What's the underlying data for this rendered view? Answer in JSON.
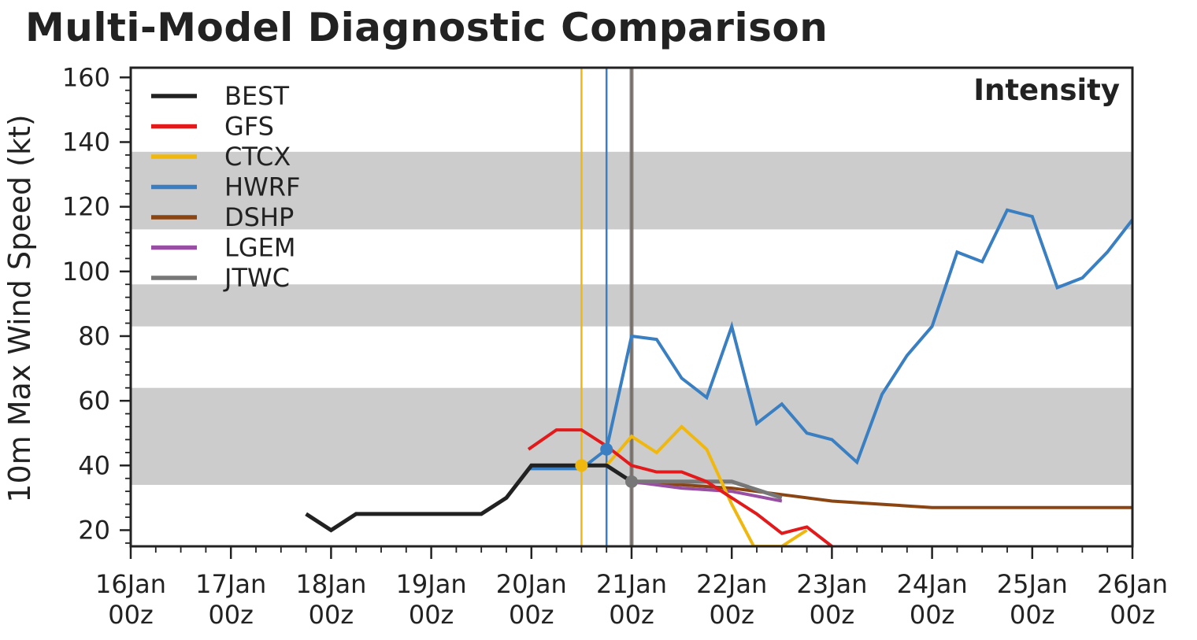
{
  "title": "Multi-Model Diagnostic Comparison",
  "chart_data": {
    "type": "line",
    "panel_label": "Intensity",
    "ylabel": "10m Max Wind Speed (kt)",
    "xlabel": "",
    "ylim": [
      15,
      163
    ],
    "xlim": [
      0,
      10
    ],
    "y_ticks": [
      20,
      40,
      60,
      80,
      100,
      120,
      140,
      160
    ],
    "x_ticks": [
      {
        "x": 0,
        "label": [
          "16Jan",
          "00z"
        ]
      },
      {
        "x": 1,
        "label": [
          "17Jan",
          "00z"
        ]
      },
      {
        "x": 2,
        "label": [
          "18Jan",
          "00z"
        ]
      },
      {
        "x": 3,
        "label": [
          "19Jan",
          "00z"
        ]
      },
      {
        "x": 4,
        "label": [
          "20Jan",
          "00z"
        ]
      },
      {
        "x": 5,
        "label": [
          "21Jan",
          "00z"
        ]
      },
      {
        "x": 6,
        "label": [
          "22Jan",
          "00z"
        ]
      },
      {
        "x": 7,
        "label": [
          "23Jan",
          "00z"
        ]
      },
      {
        "x": 8,
        "label": [
          "24Jan",
          "00z"
        ]
      },
      {
        "x": 9,
        "label": [
          "25Jan",
          "00z"
        ]
      },
      {
        "x": 10,
        "label": [
          "26Jan",
          "00z"
        ]
      }
    ],
    "grid": false,
    "legend_position": "top-left",
    "shaded_bands": [
      [
        34,
        64
      ],
      [
        83,
        96
      ],
      [
        113,
        137
      ]
    ],
    "init_lines": [
      {
        "series": "CTCX",
        "x": 4.5
      },
      {
        "series": "HWRF",
        "x": 4.75
      },
      {
        "series": "DSHP",
        "x": 5.0
      },
      {
        "series": "JTWC",
        "x": 5.0
      }
    ],
    "series": [
      {
        "name": "BEST",
        "color": "#222222",
        "width": 5,
        "x": [
          1.75,
          2.0,
          2.25,
          2.5,
          2.75,
          3.0,
          3.25,
          3.5,
          3.75,
          4.0,
          4.25,
          4.5,
          4.75,
          5.0
        ],
        "y": [
          25,
          20,
          25,
          25,
          25,
          25,
          25,
          25,
          30,
          40,
          40,
          40,
          40,
          35
        ]
      },
      {
        "name": "GFS",
        "color": "#e31a1c",
        "width": 4,
        "x": [
          3.97,
          4.25,
          4.5,
          4.75,
          5.0,
          5.25,
          5.5,
          5.75,
          6.0,
          6.25,
          6.5,
          6.75,
          7.0
        ],
        "y": [
          45,
          51,
          51,
          46,
          40,
          38,
          38,
          35,
          30,
          25,
          19,
          21,
          15
        ]
      },
      {
        "name": "CTCX",
        "color": "#f0b80f",
        "width": 4,
        "x": [
          4.5,
          4.75,
          5.0,
          5.25,
          5.5,
          5.75,
          6.0,
          6.22,
          6.5,
          6.75
        ],
        "y": [
          40,
          40,
          49,
          44,
          52,
          45,
          28,
          15,
          15,
          20
        ],
        "marker_index": 0
      },
      {
        "name": "HWRF",
        "color": "#3a7fc1",
        "width": 4,
        "x": [
          3.97,
          4.5,
          4.75,
          5.0,
          5.25,
          5.5,
          5.75,
          6.0,
          6.25,
          6.5,
          6.75,
          7.0,
          7.25,
          7.5,
          7.75,
          8.0,
          8.25,
          8.5,
          8.75,
          9.0,
          9.25,
          9.5,
          9.75,
          10.0
        ],
        "y": [
          39,
          39,
          45,
          80,
          79,
          67,
          61,
          83,
          53,
          59,
          50,
          48,
          41,
          62,
          74,
          83,
          106,
          103,
          119,
          117,
          95,
          98,
          106,
          116
        ],
        "marker_index": 2
      },
      {
        "name": "DSHP",
        "color": "#8b4513",
        "width": 4,
        "x": [
          5.0,
          5.5,
          6.0,
          6.5,
          7.0,
          7.5,
          8.0,
          8.5,
          9.0,
          9.5,
          10.0
        ],
        "y": [
          35,
          34,
          33,
          31,
          29,
          28,
          27,
          27,
          27,
          27,
          27
        ]
      },
      {
        "name": "LGEM",
        "color": "#984ea3",
        "width": 4,
        "x": [
          5.0,
          5.5,
          6.0,
          6.5
        ],
        "y": [
          35,
          33,
          32,
          29
        ]
      },
      {
        "name": "JTWC",
        "color": "#777777",
        "width": 5,
        "x": [
          5.0,
          5.5,
          6.0,
          6.5
        ],
        "y": [
          35,
          35,
          35,
          30
        ],
        "marker_index": 0
      }
    ]
  }
}
